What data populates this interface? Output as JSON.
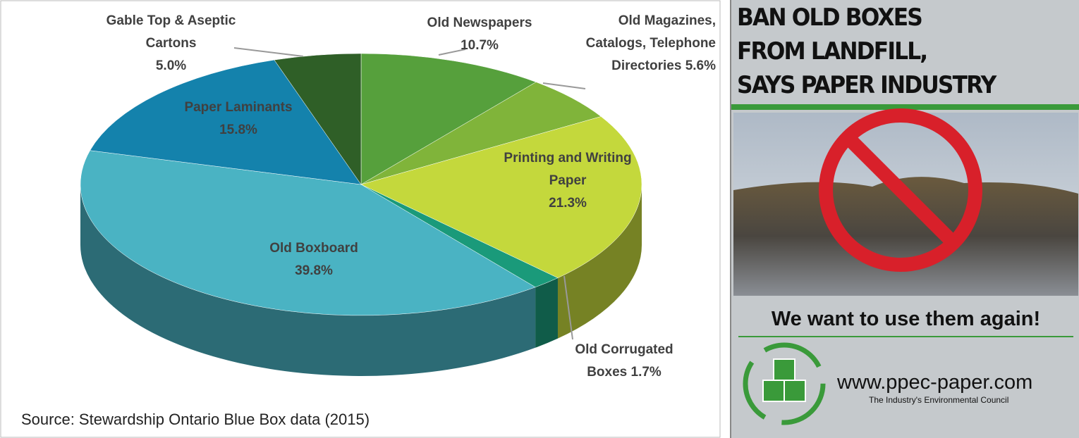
{
  "chart_data": {
    "type": "pie",
    "categories": [
      "Old Newspapers",
      "Old Magazines, Catalogs, Telephone Directories",
      "Printing and Writing Paper",
      "Old Corrugated Boxes",
      "Old Boxboard",
      "Paper Laminants",
      "Gable Top & Aseptic Cartons"
    ],
    "values": [
      10.7,
      5.6,
      21.3,
      1.7,
      39.8,
      15.8,
      5.0
    ],
    "value_labels": [
      "10.7%",
      "5.6%",
      "21.3%",
      "1.7%",
      "39.8%",
      "15.8%",
      "5.0%"
    ],
    "colors": [
      "#56a03c",
      "#80b43a",
      "#c4d83c",
      "#1a9a7a",
      "#4ab3c3",
      "#1482ac",
      "#2f5f27"
    ],
    "source": "Source: Stewardship Ontario Blue Box data (2015)"
  },
  "poster": {
    "headline": [
      "BAN OLD BOXES",
      "FROM LANDFILL,",
      "SAYS PAPER INDUSTRY"
    ],
    "slogan": "We want to use them again!",
    "url": "www.ppec-paper.com",
    "tagline": "The Industry's Environmental Council"
  }
}
